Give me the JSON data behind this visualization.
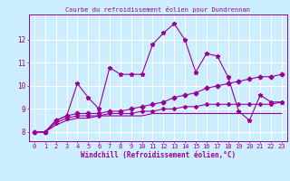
{
  "title": "Courbe du refroidissement éolien pour Dundrennan",
  "xlabel": "Windchill (Refroidissement éolien,°C)",
  "background_color": "#cceeff",
  "grid_color": "#ffffff",
  "line_color": "#990099",
  "x_ticks": [
    0,
    1,
    2,
    3,
    4,
    5,
    6,
    7,
    8,
    9,
    10,
    11,
    12,
    13,
    14,
    15,
    16,
    17,
    18,
    19,
    20,
    21,
    22,
    23
  ],
  "ylim": [
    7.6,
    13.1
  ],
  "xlim": [
    -0.5,
    23.5
  ],
  "y_ticks": [
    8,
    9,
    10,
    11,
    12
  ],
  "series1": [
    8.0,
    8.0,
    8.5,
    8.7,
    10.1,
    9.5,
    9.0,
    10.8,
    10.5,
    10.5,
    10.5,
    11.8,
    12.3,
    12.7,
    12.0,
    10.6,
    11.4,
    11.3,
    10.4,
    8.9,
    8.5,
    9.6,
    9.3,
    9.3
  ],
  "series2": [
    8.0,
    8.0,
    8.5,
    8.7,
    8.8,
    8.8,
    8.8,
    8.9,
    8.9,
    9.0,
    9.1,
    9.2,
    9.3,
    9.5,
    9.6,
    9.7,
    9.9,
    10.0,
    10.1,
    10.2,
    10.3,
    10.4,
    10.4,
    10.5
  ],
  "series3": [
    8.0,
    8.0,
    8.4,
    8.6,
    8.7,
    8.7,
    8.7,
    8.8,
    8.8,
    8.8,
    8.9,
    8.9,
    9.0,
    9.0,
    9.1,
    9.1,
    9.2,
    9.2,
    9.2,
    9.2,
    9.2,
    9.2,
    9.2,
    9.3
  ],
  "series4": [
    8.0,
    8.0,
    8.3,
    8.5,
    8.6,
    8.6,
    8.7,
    8.7,
    8.7,
    8.7,
    8.7,
    8.8,
    8.8,
    8.8,
    8.8,
    8.8,
    8.8,
    8.8,
    8.8,
    8.8,
    8.8,
    8.8,
    8.8,
    8.8
  ],
  "tick_fontsize": 5.0,
  "xlabel_fontsize": 5.5,
  "title_fontsize": 5.0,
  "linewidth": 0.8,
  "marker_size": 3.0
}
